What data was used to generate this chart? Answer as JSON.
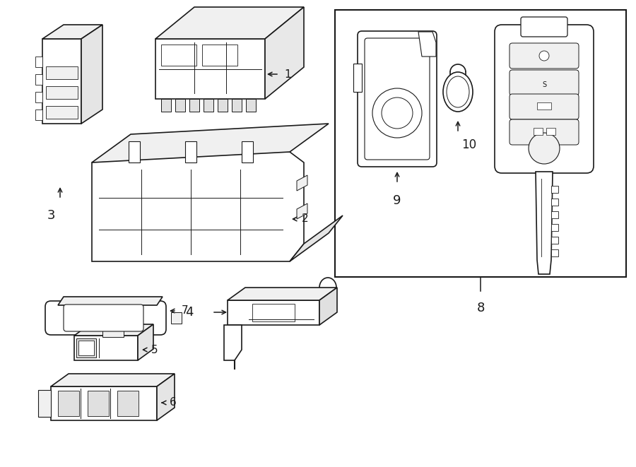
{
  "background_color": "#ffffff",
  "line_color": "#1a1a1a",
  "figsize": [
    9.0,
    6.61
  ],
  "dpi": 100
}
